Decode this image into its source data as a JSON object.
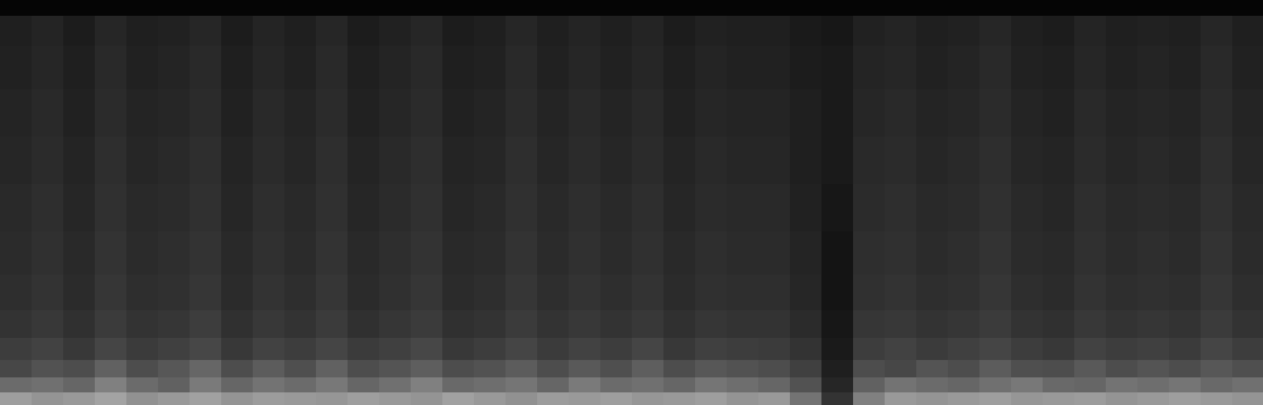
{
  "chart_data": {
    "type": "heatmap",
    "tick_labels": false,
    "grid": false,
    "xlim": [
      0,
      1599
    ],
    "ylim": [
      0,
      513
    ],
    "zlim": [
      0,
      1
    ],
    "x": [
      20,
      60,
      100,
      140,
      180,
      220,
      260,
      300,
      340,
      380,
      420,
      460,
      500,
      540,
      580,
      620,
      660,
      700,
      740,
      780,
      820,
      860,
      900,
      940,
      980,
      1020,
      1060,
      1100,
      1140,
      1180,
      1220,
      1260,
      1300,
      1340,
      1380,
      1420,
      1460,
      1500,
      1540,
      1580
    ],
    "y": [
      8,
      25,
      45,
      70,
      100,
      140,
      190,
      250,
      310,
      370,
      430,
      480,
      506
    ],
    "z": [
      [
        0.62,
        0.58,
        0.6,
        0.64,
        0.57,
        0.6,
        0.63,
        0.58,
        0.61,
        0.6,
        0.59,
        0.62,
        0.6,
        0.58,
        0.63,
        0.6,
        0.57,
        0.61,
        0.6,
        0.62,
        0.59,
        0.6,
        0.62,
        0.58,
        0.6,
        0.45,
        0.2,
        0.5,
        0.6,
        0.58,
        0.6,
        0.62,
        0.59,
        0.6,
        0.61,
        0.58,
        0.6,
        0.62,
        0.6,
        0.58
      ],
      [
        0.42,
        0.44,
        0.4,
        0.5,
        0.42,
        0.38,
        0.48,
        0.4,
        0.45,
        0.42,
        0.47,
        0.4,
        0.44,
        0.5,
        0.41,
        0.43,
        0.46,
        0.4,
        0.48,
        0.42,
        0.44,
        0.4,
        0.46,
        0.43,
        0.4,
        0.32,
        0.15,
        0.38,
        0.45,
        0.42,
        0.4,
        0.44,
        0.47,
        0.41,
        0.4,
        0.45,
        0.43,
        0.46,
        0.41,
        0.44
      ],
      [
        0.28,
        0.32,
        0.3,
        0.38,
        0.3,
        0.34,
        0.4,
        0.3,
        0.36,
        0.31,
        0.38,
        0.3,
        0.33,
        0.37,
        0.3,
        0.32,
        0.36,
        0.3,
        0.35,
        0.31,
        0.37,
        0.3,
        0.34,
        0.32,
        0.3,
        0.25,
        0.12,
        0.3,
        0.28,
        0.33,
        0.3,
        0.36,
        0.31,
        0.3,
        0.35,
        0.3,
        0.33,
        0.3,
        0.34,
        0.31
      ],
      [
        0.24,
        0.26,
        0.22,
        0.27,
        0.23,
        0.25,
        0.28,
        0.22,
        0.26,
        0.24,
        0.27,
        0.23,
        0.25,
        0.28,
        0.22,
        0.24,
        0.27,
        0.23,
        0.26,
        0.24,
        0.27,
        0.22,
        0.25,
        0.24,
        0.23,
        0.2,
        0.1,
        0.24,
        0.26,
        0.23,
        0.25,
        0.27,
        0.24,
        0.22,
        0.26,
        0.24,
        0.25,
        0.23,
        0.27,
        0.24
      ],
      [
        0.2,
        0.22,
        0.19,
        0.23,
        0.2,
        0.21,
        0.24,
        0.19,
        0.22,
        0.2,
        0.23,
        0.19,
        0.21,
        0.23,
        0.19,
        0.2,
        0.23,
        0.2,
        0.22,
        0.2,
        0.22,
        0.19,
        0.21,
        0.2,
        0.2,
        0.17,
        0.09,
        0.21,
        0.22,
        0.2,
        0.21,
        0.23,
        0.2,
        0.19,
        0.22,
        0.2,
        0.21,
        0.2,
        0.23,
        0.2
      ],
      [
        0.18,
        0.2,
        0.17,
        0.21,
        0.18,
        0.19,
        0.21,
        0.17,
        0.2,
        0.18,
        0.21,
        0.17,
        0.19,
        0.21,
        0.17,
        0.18,
        0.21,
        0.18,
        0.2,
        0.18,
        0.2,
        0.17,
        0.19,
        0.18,
        0.18,
        0.15,
        0.08,
        0.19,
        0.2,
        0.18,
        0.19,
        0.21,
        0.18,
        0.17,
        0.2,
        0.18,
        0.19,
        0.18,
        0.21,
        0.18
      ],
      [
        0.17,
        0.19,
        0.16,
        0.2,
        0.17,
        0.18,
        0.2,
        0.16,
        0.19,
        0.17,
        0.2,
        0.16,
        0.18,
        0.2,
        0.16,
        0.17,
        0.2,
        0.17,
        0.19,
        0.17,
        0.19,
        0.16,
        0.18,
        0.17,
        0.17,
        0.14,
        0.08,
        0.18,
        0.19,
        0.17,
        0.18,
        0.2,
        0.17,
        0.16,
        0.19,
        0.17,
        0.18,
        0.17,
        0.2,
        0.17
      ],
      [
        0.16,
        0.18,
        0.15,
        0.19,
        0.16,
        0.17,
        0.19,
        0.15,
        0.18,
        0.16,
        0.19,
        0.15,
        0.17,
        0.19,
        0.15,
        0.16,
        0.19,
        0.16,
        0.18,
        0.16,
        0.18,
        0.15,
        0.17,
        0.16,
        0.16,
        0.13,
        0.09,
        0.17,
        0.18,
        0.16,
        0.17,
        0.19,
        0.16,
        0.15,
        0.18,
        0.16,
        0.17,
        0.16,
        0.19,
        0.16
      ],
      [
        0.15,
        0.17,
        0.14,
        0.18,
        0.15,
        0.16,
        0.18,
        0.14,
        0.17,
        0.15,
        0.18,
        0.14,
        0.16,
        0.18,
        0.14,
        0.15,
        0.18,
        0.15,
        0.17,
        0.15,
        0.17,
        0.14,
        0.16,
        0.15,
        0.15,
        0.12,
        0.1,
        0.16,
        0.17,
        0.15,
        0.16,
        0.18,
        0.15,
        0.14,
        0.17,
        0.15,
        0.16,
        0.15,
        0.18,
        0.15
      ],
      [
        0.14,
        0.16,
        0.13,
        0.17,
        0.14,
        0.15,
        0.17,
        0.13,
        0.16,
        0.14,
        0.17,
        0.13,
        0.15,
        0.17,
        0.13,
        0.14,
        0.17,
        0.14,
        0.16,
        0.14,
        0.16,
        0.13,
        0.15,
        0.14,
        0.14,
        0.12,
        0.1,
        0.15,
        0.16,
        0.14,
        0.15,
        0.17,
        0.14,
        0.13,
        0.16,
        0.14,
        0.15,
        0.14,
        0.17,
        0.14
      ],
      [
        0.13,
        0.15,
        0.12,
        0.16,
        0.13,
        0.14,
        0.16,
        0.12,
        0.15,
        0.13,
        0.16,
        0.12,
        0.14,
        0.16,
        0.12,
        0.13,
        0.16,
        0.13,
        0.15,
        0.13,
        0.15,
        0.12,
        0.14,
        0.13,
        0.13,
        0.11,
        0.1,
        0.14,
        0.15,
        0.13,
        0.14,
        0.16,
        0.13,
        0.12,
        0.15,
        0.13,
        0.14,
        0.13,
        0.16,
        0.13
      ],
      [
        0.12,
        0.14,
        0.11,
        0.15,
        0.12,
        0.13,
        0.15,
        0.11,
        0.14,
        0.12,
        0.15,
        0.11,
        0.13,
        0.15,
        0.11,
        0.12,
        0.15,
        0.12,
        0.14,
        0.12,
        0.14,
        0.11,
        0.13,
        0.12,
        0.12,
        0.1,
        0.09,
        0.13,
        0.14,
        0.12,
        0.13,
        0.15,
        0.12,
        0.11,
        0.14,
        0.12,
        0.13,
        0.12,
        0.15,
        0.12
      ],
      [
        0.02,
        0.02,
        0.02,
        0.02,
        0.02,
        0.02,
        0.02,
        0.02,
        0.02,
        0.02,
        0.02,
        0.02,
        0.02,
        0.02,
        0.02,
        0.02,
        0.02,
        0.02,
        0.02,
        0.02,
        0.02,
        0.02,
        0.02,
        0.02,
        0.02,
        0.02,
        0.02,
        0.02,
        0.02,
        0.02,
        0.02,
        0.02,
        0.02,
        0.02,
        0.02,
        0.02,
        0.02,
        0.02,
        0.02,
        0.02
      ]
    ]
  }
}
